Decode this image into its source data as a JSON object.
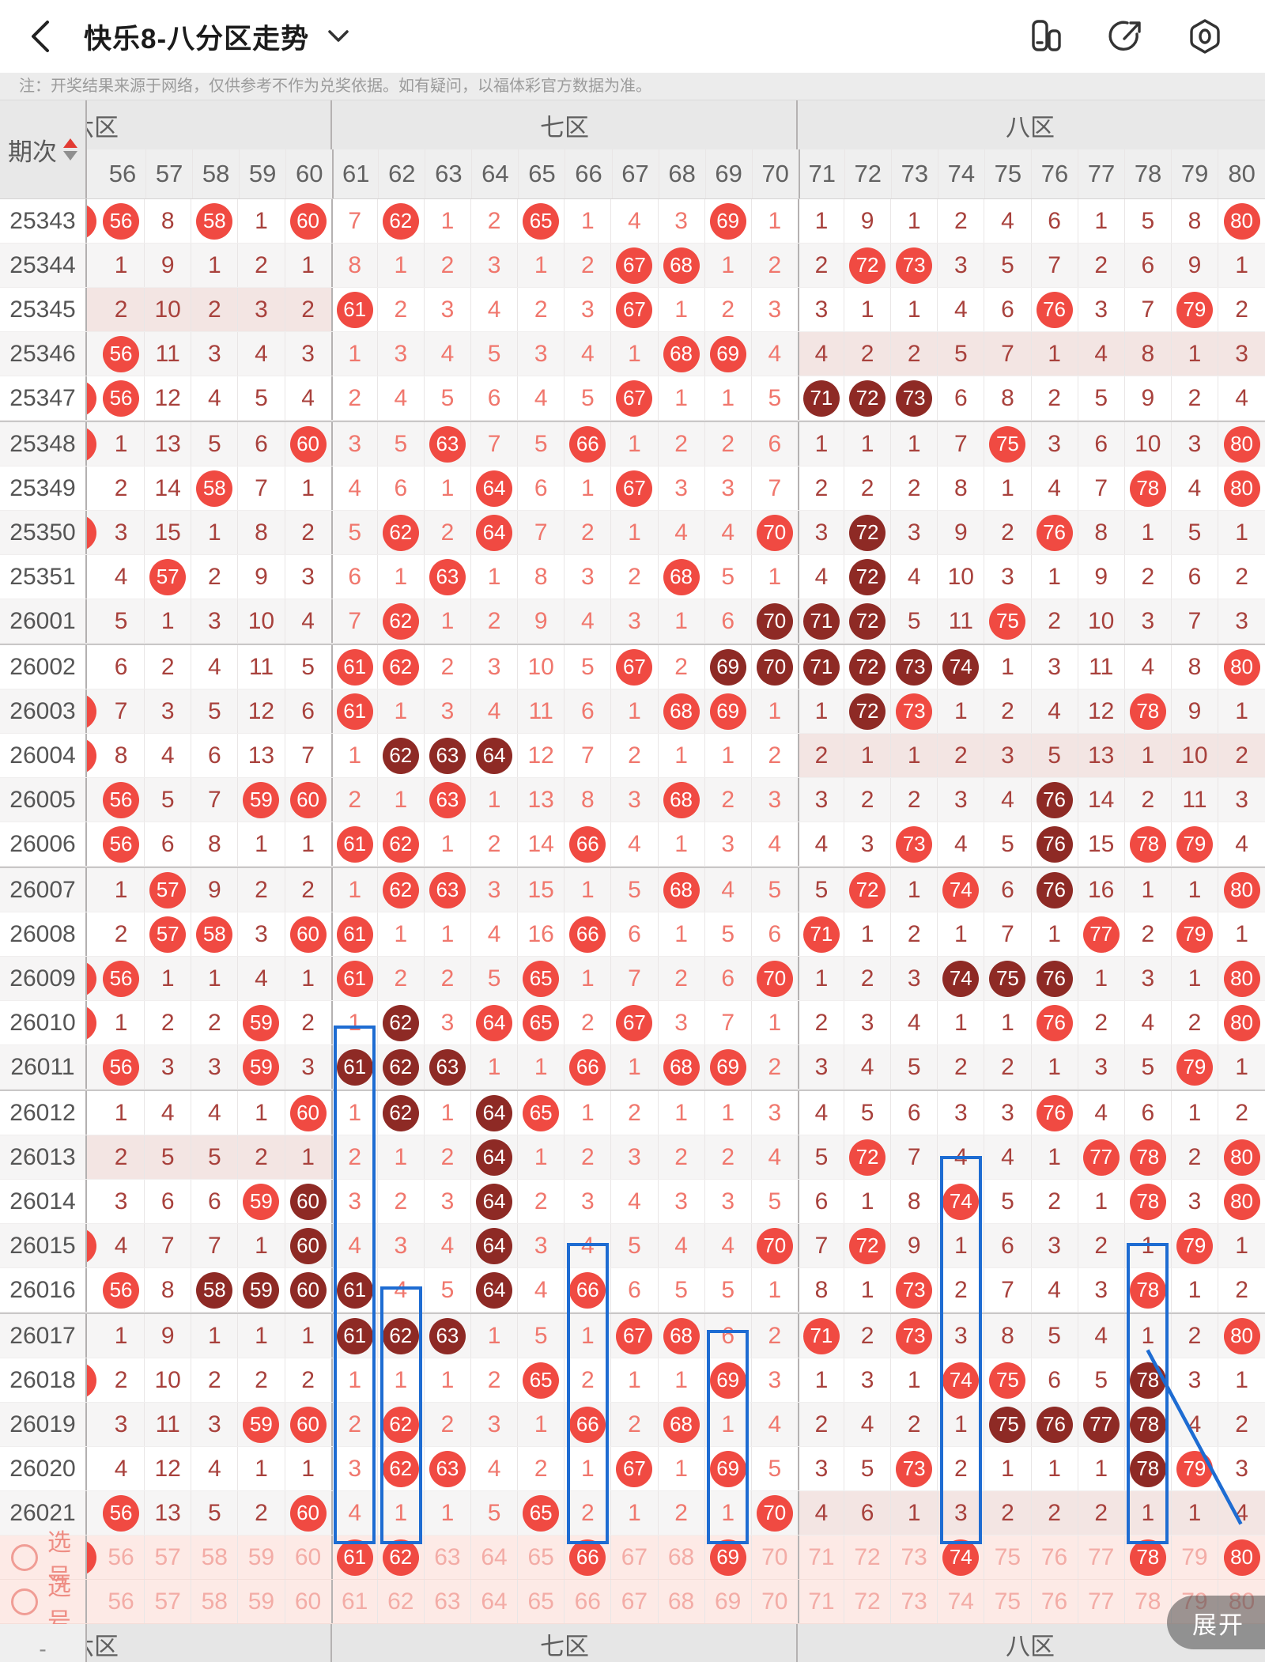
{
  "header": {
    "title": "快乐8-八分区走势",
    "icons": [
      "back-icon",
      "caret-down-icon",
      "compare-columns-icon",
      "share-icon",
      "settings-icon"
    ]
  },
  "note": "注：开奖结果来源于网络，仅供参考不作为兑奖依据。如有疑问，以福体彩官方数据为准。",
  "table": {
    "period_header": "期次",
    "zones": [
      {
        "id": "z6",
        "label": "六区",
        "clipped": true,
        "cols": [
          56,
          60
        ]
      },
      {
        "id": "z7",
        "label": "七区",
        "clipped": false,
        "cols": [
          61,
          70
        ]
      },
      {
        "id": "z8",
        "label": "八区",
        "clipped": false,
        "cols": [
          71,
          80
        ]
      }
    ],
    "columns": [
      56,
      57,
      58,
      59,
      60,
      61,
      62,
      63,
      64,
      65,
      66,
      67,
      68,
      69,
      70,
      71,
      72,
      73,
      74,
      75,
      76,
      77,
      78,
      79,
      80
    ],
    "legend": {
      "hit": "red ball",
      "hit_streak": "dark red ball",
      "miss": "miss count"
    },
    "colors": {
      "hit": "#f04a42",
      "hit_dark": "#8e2a25",
      "miss_dark_zone": "#a8413c",
      "miss_light_zone": "#f0776d",
      "pick_accent": "#ee8d84",
      "annotation_blue": "#1e6cd2"
    },
    "rows": [
      {
        "p": "25343",
        "lp": true,
        "pink": [],
        "c": [
          "56*",
          "8",
          "58*",
          "1",
          "60*",
          "7",
          "62*",
          "1",
          "2",
          "65*",
          "1",
          "4",
          "3",
          "69*",
          "1",
          "1",
          "9",
          "1",
          "2",
          "4",
          "6",
          "1",
          "5",
          "8",
          "80*"
        ]
      },
      {
        "p": "25344",
        "lp": false,
        "pink": [],
        "c": [
          "1",
          "9",
          "1",
          "2",
          "1",
          "8",
          "1",
          "2",
          "3",
          "1",
          "2",
          "67*",
          "68*",
          "1",
          "2",
          "2",
          "72*",
          "73*",
          "3",
          "5",
          "7",
          "2",
          "6",
          "9",
          "1"
        ]
      },
      {
        "p": "25345",
        "lp": false,
        "pink": [
          "z6"
        ],
        "c": [
          "2",
          "10",
          "2",
          "3",
          "2",
          "61*",
          "2",
          "3",
          "4",
          "2",
          "3",
          "67*",
          "1",
          "2",
          "3",
          "3",
          "1",
          "1",
          "4",
          "6",
          "76*",
          "3",
          "7",
          "79*",
          "2"
        ]
      },
      {
        "p": "25346",
        "lp": false,
        "pink": [
          "z8"
        ],
        "c": [
          "56*",
          "11",
          "3",
          "4",
          "3",
          "1",
          "3",
          "4",
          "5",
          "3",
          "4",
          "1",
          "68*",
          "69*",
          "4",
          "4",
          "2",
          "2",
          "5",
          "7",
          "1",
          "4",
          "8",
          "1",
          "3"
        ]
      },
      {
        "p": "25347",
        "lp": true,
        "pink": [],
        "c": [
          "56*",
          "12",
          "4",
          "5",
          "4",
          "2",
          "4",
          "5",
          "6",
          "4",
          "5",
          "67*",
          "1",
          "1",
          "5",
          "71#",
          "72#",
          "73#",
          "6",
          "8",
          "2",
          "5",
          "9",
          "2",
          "4"
        ]
      },
      {
        "p": "25348",
        "lp": true,
        "pink": [],
        "c": [
          "1",
          "13",
          "5",
          "6",
          "60*",
          "3",
          "5",
          "63*",
          "7",
          "5",
          "66*",
          "1",
          "2",
          "2",
          "6",
          "1",
          "1",
          "1",
          "7",
          "75*",
          "3",
          "6",
          "10",
          "3",
          "80*"
        ]
      },
      {
        "p": "25349",
        "lp": false,
        "pink": [],
        "c": [
          "2",
          "14",
          "58*",
          "7",
          "1",
          "4",
          "6",
          "1",
          "64*",
          "6",
          "1",
          "67*",
          "3",
          "3",
          "7",
          "2",
          "2",
          "2",
          "8",
          "1",
          "4",
          "7",
          "78*",
          "4",
          "80*"
        ]
      },
      {
        "p": "25350",
        "lp": true,
        "pink": [],
        "c": [
          "3",
          "15",
          "1",
          "8",
          "2",
          "5",
          "62*",
          "2",
          "64*",
          "7",
          "2",
          "1",
          "4",
          "4",
          "70*",
          "3",
          "72#",
          "3",
          "9",
          "2",
          "76*",
          "8",
          "1",
          "5",
          "1"
        ]
      },
      {
        "p": "25351",
        "lp": false,
        "pink": [],
        "c": [
          "4",
          "57*",
          "2",
          "9",
          "3",
          "6",
          "1",
          "63*",
          "1",
          "8",
          "3",
          "2",
          "68*",
          "5",
          "1",
          "4",
          "72#",
          "4",
          "10",
          "3",
          "1",
          "9",
          "2",
          "6",
          "2"
        ]
      },
      {
        "p": "26001",
        "lp": false,
        "pink": [],
        "c": [
          "5",
          "1",
          "3",
          "10",
          "4",
          "7",
          "62*",
          "1",
          "2",
          "9",
          "4",
          "3",
          "1",
          "6",
          "70#",
          "71#",
          "72#",
          "5",
          "11",
          "75*",
          "2",
          "10",
          "3",
          "7",
          "3"
        ]
      },
      {
        "p": "26002",
        "lp": false,
        "pink": [],
        "c": [
          "6",
          "2",
          "4",
          "11",
          "5",
          "61*",
          "62*",
          "2",
          "3",
          "10",
          "5",
          "67*",
          "2",
          "69#",
          "70#",
          "71#",
          "72#",
          "73#",
          "74#",
          "1",
          "3",
          "11",
          "4",
          "8",
          "80*"
        ]
      },
      {
        "p": "26003",
        "lp": true,
        "pink": [],
        "c": [
          "7",
          "3",
          "5",
          "12",
          "6",
          "61*",
          "1",
          "3",
          "4",
          "11",
          "6",
          "1",
          "68*",
          "69*",
          "1",
          "1",
          "72#",
          "73*",
          "1",
          "2",
          "4",
          "12",
          "78*",
          "9",
          "1"
        ]
      },
      {
        "p": "26004",
        "lp": true,
        "pink": [
          "z8"
        ],
        "c": [
          "8",
          "4",
          "6",
          "13",
          "7",
          "1",
          "62#",
          "63#",
          "64#",
          "12",
          "7",
          "2",
          "1",
          "1",
          "2",
          "2",
          "1",
          "1",
          "2",
          "3",
          "5",
          "13",
          "1",
          "10",
          "2"
        ]
      },
      {
        "p": "26005",
        "lp": false,
        "pink": [],
        "c": [
          "56*",
          "5",
          "7",
          "59*",
          "60*",
          "2",
          "1",
          "63*",
          "1",
          "13",
          "8",
          "3",
          "68*",
          "2",
          "3",
          "3",
          "2",
          "2",
          "3",
          "4",
          "76#",
          "14",
          "2",
          "11",
          "3"
        ]
      },
      {
        "p": "26006",
        "lp": false,
        "pink": [],
        "c": [
          "56*",
          "6",
          "8",
          "1",
          "1",
          "61*",
          "62*",
          "1",
          "2",
          "14",
          "66*",
          "4",
          "1",
          "3",
          "4",
          "4",
          "3",
          "73*",
          "4",
          "5",
          "76#",
          "15",
          "78*",
          "79*",
          "4"
        ]
      },
      {
        "p": "26007",
        "lp": false,
        "pink": [],
        "c": [
          "1",
          "57*",
          "9",
          "2",
          "2",
          "1",
          "62*",
          "63*",
          "3",
          "15",
          "1",
          "5",
          "68*",
          "4",
          "5",
          "5",
          "72*",
          "1",
          "74*",
          "6",
          "76#",
          "16",
          "1",
          "1",
          "80*"
        ]
      },
      {
        "p": "26008",
        "lp": false,
        "pink": [],
        "c": [
          "2",
          "57*",
          "58*",
          "3",
          "60*",
          "61*",
          "1",
          "1",
          "4",
          "16",
          "66*",
          "6",
          "1",
          "5",
          "6",
          "71*",
          "1",
          "2",
          "1",
          "7",
          "1",
          "77*",
          "2",
          "79*",
          "1"
        ]
      },
      {
        "p": "26009",
        "lp": true,
        "pink": [],
        "c": [
          "56*",
          "1",
          "1",
          "4",
          "1",
          "61*",
          "2",
          "2",
          "5",
          "65*",
          "1",
          "7",
          "2",
          "6",
          "70*",
          "1",
          "2",
          "3",
          "74#",
          "75#",
          "76#",
          "1",
          "3",
          "1",
          "80*"
        ]
      },
      {
        "p": "26010",
        "lp": true,
        "pink": [],
        "c": [
          "1",
          "2",
          "2",
          "59*",
          "2",
          "1",
          "62#",
          "3",
          "64*",
          "65*",
          "2",
          "67*",
          "3",
          "7",
          "1",
          "2",
          "3",
          "4",
          "1",
          "1",
          "76*",
          "2",
          "4",
          "2",
          "80*"
        ]
      },
      {
        "p": "26011",
        "lp": false,
        "pink": [],
        "c": [
          "56*",
          "3",
          "3",
          "59*",
          "3",
          "61#",
          "62#",
          "63#",
          "1",
          "1",
          "66*",
          "1",
          "68*",
          "69*",
          "2",
          "3",
          "4",
          "5",
          "2",
          "2",
          "1",
          "3",
          "5",
          "79*",
          "1"
        ]
      },
      {
        "p": "26012",
        "lp": false,
        "pink": [],
        "c": [
          "1",
          "4",
          "4",
          "1",
          "60*",
          "1",
          "62#",
          "1",
          "64#",
          "65*",
          "1",
          "2",
          "1",
          "1",
          "3",
          "4",
          "5",
          "6",
          "3",
          "3",
          "76*",
          "4",
          "6",
          "1",
          "2"
        ]
      },
      {
        "p": "26013",
        "lp": false,
        "pink": [
          "z6"
        ],
        "c": [
          "2",
          "5",
          "5",
          "2",
          "1",
          "2",
          "1",
          "2",
          "64#",
          "1",
          "2",
          "3",
          "2",
          "2",
          "4",
          "5",
          "72*",
          "7",
          "4",
          "4",
          "1",
          "77*",
          "78*",
          "2",
          "80*"
        ]
      },
      {
        "p": "26014",
        "lp": false,
        "pink": [],
        "c": [
          "3",
          "6",
          "6",
          "59*",
          "60#",
          "3",
          "2",
          "3",
          "64#",
          "2",
          "3",
          "4",
          "3",
          "3",
          "5",
          "6",
          "1",
          "8",
          "74*",
          "5",
          "2",
          "1",
          "78*",
          "3",
          "80*"
        ]
      },
      {
        "p": "26015",
        "lp": true,
        "pink": [],
        "c": [
          "4",
          "7",
          "7",
          "1",
          "60#",
          "4",
          "3",
          "4",
          "64#",
          "3",
          "4",
          "5",
          "4",
          "4",
          "70*",
          "7",
          "72*",
          "9",
          "1",
          "6",
          "3",
          "2",
          "1",
          "79*",
          "1"
        ]
      },
      {
        "p": "26016",
        "lp": false,
        "pink": [],
        "c": [
          "56*",
          "8",
          "58#",
          "59#",
          "60#",
          "61#",
          "4",
          "5",
          "64#",
          "4",
          "66*",
          "6",
          "5",
          "5",
          "1",
          "8",
          "1",
          "73*",
          "2",
          "7",
          "4",
          "3",
          "78*",
          "1",
          "2"
        ]
      },
      {
        "p": "26017",
        "lp": false,
        "pink": [],
        "c": [
          "1",
          "9",
          "1",
          "1",
          "1",
          "61#",
          "62#",
          "63#",
          "1",
          "5",
          "1",
          "67*",
          "68*",
          "6",
          "2",
          "71*",
          "2",
          "73*",
          "3",
          "8",
          "5",
          "4",
          "1",
          "2",
          "80*"
        ]
      },
      {
        "p": "26018",
        "lp": true,
        "pink": [],
        "c": [
          "2",
          "10",
          "2",
          "2",
          "2",
          "1",
          "1",
          "1",
          "2",
          "65*",
          "2",
          "1",
          "1",
          "69*",
          "3",
          "1",
          "3",
          "1",
          "74*",
          "75*",
          "6",
          "5",
          "78#",
          "3",
          "1"
        ]
      },
      {
        "p": "26019",
        "lp": false,
        "pink": [],
        "c": [
          "3",
          "11",
          "3",
          "59*",
          "60*",
          "2",
          "62*",
          "2",
          "3",
          "1",
          "66*",
          "2",
          "68*",
          "1",
          "4",
          "2",
          "4",
          "2",
          "1",
          "75#",
          "76#",
          "77#",
          "78#",
          "4",
          "2"
        ]
      },
      {
        "p": "26020",
        "lp": false,
        "pink": [],
        "c": [
          "4",
          "12",
          "4",
          "1",
          "1",
          "3",
          "62*",
          "63*",
          "4",
          "2",
          "1",
          "67*",
          "1",
          "69*",
          "5",
          "3",
          "5",
          "73*",
          "2",
          "1",
          "1",
          "1",
          "78#",
          "79*",
          "3"
        ]
      },
      {
        "p": "26021",
        "lp": false,
        "pink": [
          "z8"
        ],
        "c": [
          "56*",
          "13",
          "5",
          "2",
          "60*",
          "4",
          "1",
          "1",
          "5",
          "65*",
          "2",
          "1",
          "2",
          "1",
          "70*",
          "4",
          "6",
          "1",
          "3",
          "2",
          "2",
          "2",
          "1",
          "1",
          "4"
        ]
      }
    ],
    "pick_rows": [
      {
        "label": "选号",
        "lp": true,
        "selected": [
          61,
          62,
          66,
          69,
          74,
          78,
          80
        ]
      },
      {
        "label": "选号",
        "lp": false,
        "selected": []
      }
    ],
    "footer": {
      "left_dash": "-",
      "zone_labels": [
        "六区",
        "七区",
        "八区"
      ]
    },
    "annotations": {
      "boxes": [
        {
          "col": 61,
          "from": "26011",
          "to": "pick1"
        },
        {
          "col": 62,
          "from": "26017",
          "to": "pick1"
        },
        {
          "col": 66,
          "from": "26016",
          "to": "pick1"
        },
        {
          "col": 69,
          "from": "26018",
          "to": "pick1"
        },
        {
          "col": 74,
          "from": "26014",
          "to": "pick1"
        },
        {
          "col": 78,
          "from": "26016",
          "to": "pick1"
        }
      ],
      "line": {
        "from_col": 78,
        "from_row": "26018",
        "to_col": 80,
        "to_row": "pick1"
      }
    }
  },
  "expand_button": "展开"
}
